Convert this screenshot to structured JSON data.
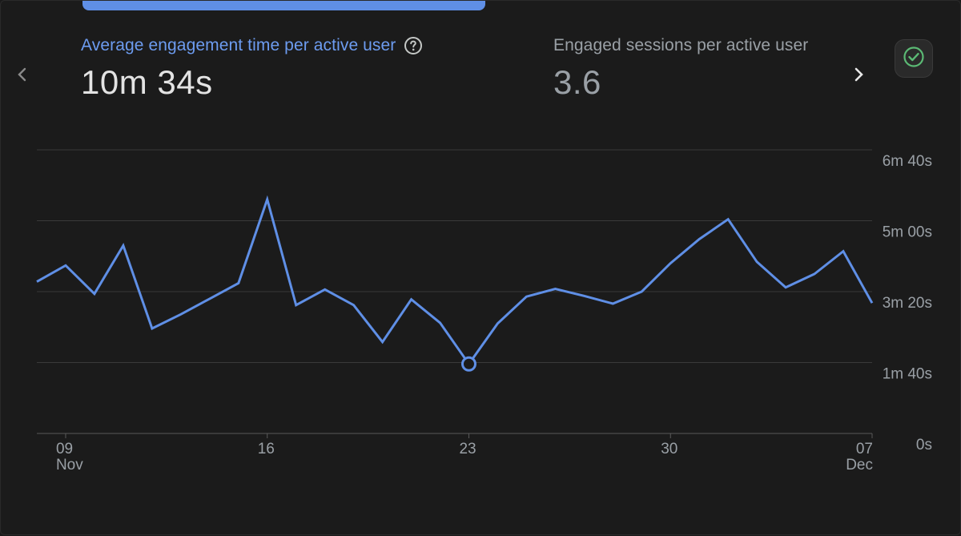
{
  "metrics": [
    {
      "label": "Average engagement time per active user",
      "value": "10m 34s",
      "active": true
    },
    {
      "label": "Engaged sessions per active user",
      "value": "3.6",
      "active": false
    }
  ],
  "icons": {
    "prev": "chevron-left-icon",
    "next": "chevron-right-icon",
    "help": "help-circle-icon",
    "status": "check-circle-icon"
  },
  "colors": {
    "accent": "#5f8fe6",
    "status": "#5bb974",
    "background": "#1b1b1b",
    "grid": "#3c3c3c"
  },
  "chart_data": {
    "type": "line",
    "title": "Average engagement time per active user",
    "y_unit": "seconds",
    "ylim": [
      0,
      400
    ],
    "yticks": [
      0,
      100,
      200,
      300,
      400
    ],
    "ytick_labels": [
      "0s",
      "1m 40s",
      "3m 20s",
      "5m 00s",
      "6m 40s"
    ],
    "x_day_range": [
      8,
      37
    ],
    "xticks": [
      {
        "day": 9,
        "label": "09",
        "sublabel": "Nov"
      },
      {
        "day": 16,
        "label": "16",
        "sublabel": ""
      },
      {
        "day": 23,
        "label": "23",
        "sublabel": ""
      },
      {
        "day": 30,
        "label": "30",
        "sublabel": ""
      },
      {
        "day": 37,
        "label": "07",
        "sublabel": "Dec"
      }
    ],
    "x": [
      8,
      9,
      10,
      11,
      12,
      13,
      14,
      15,
      16,
      17,
      18,
      19,
      20,
      21,
      22,
      23,
      24,
      25,
      26,
      27,
      28,
      29,
      30,
      31,
      32,
      33,
      34,
      35,
      36,
      37
    ],
    "series": [
      {
        "name": "Average engagement time per active user",
        "values": [
          214,
          237,
          197,
          265,
          148,
          168,
          190,
          212,
          330,
          181,
          203,
          181,
          129,
          189,
          156,
          98,
          155,
          193,
          204,
          194,
          183,
          200,
          240,
          274,
          302,
          242,
          206,
          225,
          257,
          184
        ]
      }
    ],
    "highlight_index": 15,
    "grid": true
  }
}
